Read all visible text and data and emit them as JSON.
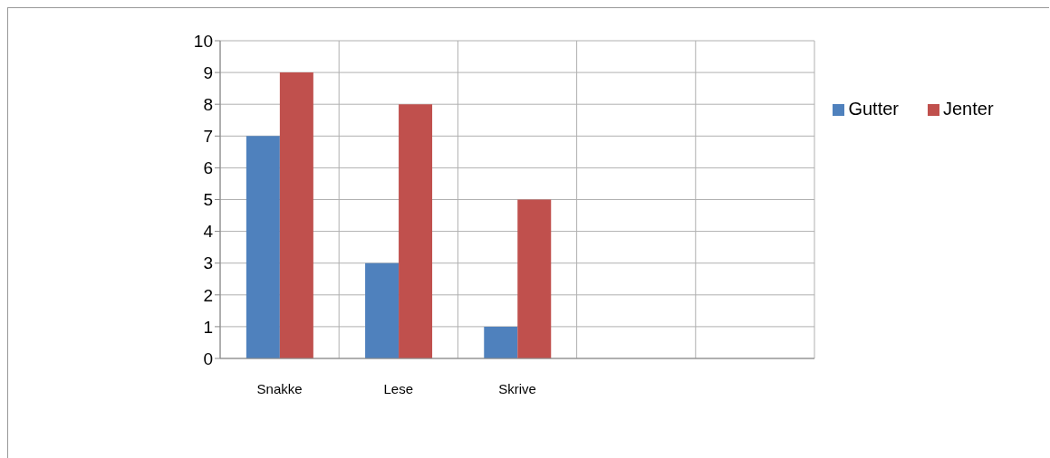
{
  "chart_data": {
    "type": "bar",
    "categories": [
      "Snakke",
      "Lese",
      "Skrive",
      null,
      null
    ],
    "series": [
      {
        "name": "Gutter",
        "color": "#4f81bd",
        "values": [
          7,
          3,
          1,
          null,
          null
        ]
      },
      {
        "name": "Jenter",
        "color": "#c0504d",
        "values": [
          9,
          8,
          5,
          null,
          null
        ]
      }
    ],
    "ylim": [
      0,
      10
    ],
    "yticks": [
      0,
      1,
      2,
      3,
      4,
      5,
      6,
      7,
      8,
      9,
      10
    ],
    "grid": true,
    "legend": "right"
  }
}
